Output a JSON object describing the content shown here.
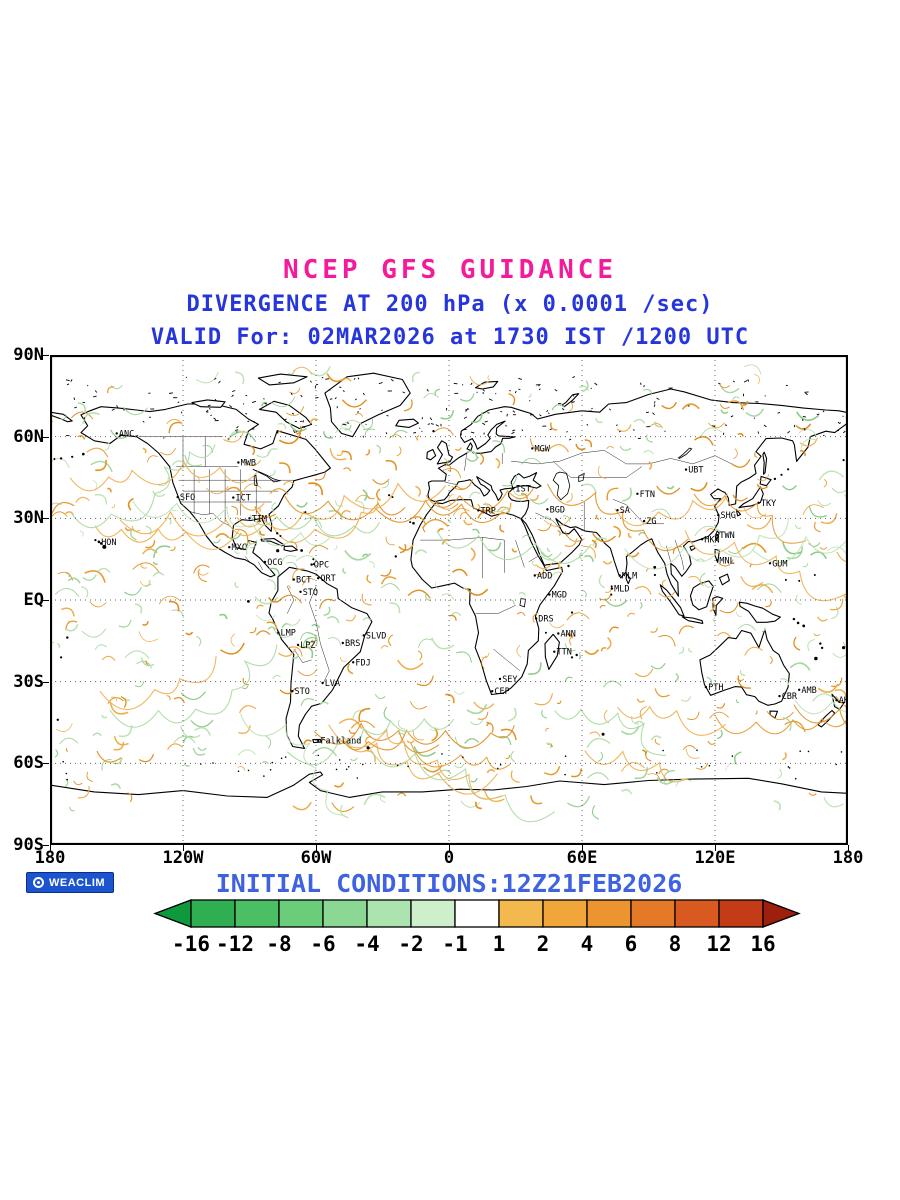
{
  "header": {
    "title": "NCEP GFS GUIDANCE",
    "subtitle1": "DIVERGENCE AT 200 hPa (x 0.0001 /sec)",
    "subtitle2": "VALID For: 02MAR2026 at 1730 IST /1200 UTC"
  },
  "footer": {
    "logo_text": "WEACLIM",
    "initial_conditions": "INITIAL CONDITIONS:12Z21FEB2026"
  },
  "colors": {
    "title_magenta": "#F5199B",
    "heading_blue": "#2636DC",
    "footer_blue": "#3E62E0",
    "logo_bg": "#1C53CF",
    "coastline": "#000000",
    "gridline": "#666666",
    "field_orange": [
      "#E59A2D",
      "#DE8F1F",
      "#EFAE4E"
    ],
    "field_green": [
      "#A8D9A0",
      "#BFE3B4",
      "#8FCC8B"
    ]
  },
  "map_axes": {
    "lat_ticks": [
      "90N",
      "60N",
      "30N",
      "EQ",
      "30S",
      "60S",
      "90S"
    ],
    "lon_ticks": [
      "180",
      "120W",
      "60W",
      "0",
      "60E",
      "120E",
      "180"
    ]
  },
  "stations": [
    {
      "label": "ANC",
      "lon": -149.9,
      "lat": 61.2
    },
    {
      "label": "MWB",
      "lon": -95.0,
      "lat": 50.5
    },
    {
      "label": "SFO",
      "lon": -122.4,
      "lat": 37.8
    },
    {
      "label": "ICT",
      "lon": -97.3,
      "lat": 37.6
    },
    {
      "label": "TIM",
      "lon": -90.0,
      "lat": 30.0
    },
    {
      "label": "MXC",
      "lon": -99.1,
      "lat": 19.4
    },
    {
      "label": "HON",
      "lon": -157.9,
      "lat": 21.3
    },
    {
      "label": "OCG",
      "lon": -83.0,
      "lat": 14.0
    },
    {
      "label": "OPC",
      "lon": -62.0,
      "lat": 13.0
    },
    {
      "label": "ORT",
      "lon": -59.0,
      "lat": 8.0
    },
    {
      "label": "BCT",
      "lon": -70.0,
      "lat": 7.5
    },
    {
      "label": "STO",
      "lon": -67.0,
      "lat": 3.0
    },
    {
      "label": "LMP",
      "lon": -77.0,
      "lat": -12.0
    },
    {
      "label": "LPZ",
      "lon": -68.1,
      "lat": -16.5
    },
    {
      "label": "BRS",
      "lon": -47.9,
      "lat": -15.8
    },
    {
      "label": "SLVD",
      "lon": -38.5,
      "lat": -13.0
    },
    {
      "label": "FDJ",
      "lon": -43.2,
      "lat": -22.9
    },
    {
      "label": "STO",
      "lon": -70.7,
      "lat": -33.5
    },
    {
      "label": "LVA",
      "lon": -57.0,
      "lat": -30.5
    },
    {
      "label": "Falkland",
      "lon": -59.0,
      "lat": -51.7
    },
    {
      "label": "IST",
      "lon": 29.0,
      "lat": 41.0
    },
    {
      "label": "TRP",
      "lon": 13.2,
      "lat": 32.9
    },
    {
      "label": "BGD",
      "lon": 44.4,
      "lat": 33.3
    },
    {
      "label": "MGW",
      "lon": 37.6,
      "lat": 55.7
    },
    {
      "label": "ADD",
      "lon": 38.7,
      "lat": 9.0
    },
    {
      "label": "MGD",
      "lon": 45.3,
      "lat": 2.0
    },
    {
      "label": "DRS",
      "lon": 39.3,
      "lat": -6.8
    },
    {
      "label": "ANN",
      "lon": 49.3,
      "lat": -12.3
    },
    {
      "label": "TTN",
      "lon": 47.5,
      "lat": -19.0
    },
    {
      "label": "SEY",
      "lon": 23.0,
      "lat": -29.0
    },
    {
      "label": "CEP",
      "lon": 19.5,
      "lat": -33.5
    },
    {
      "label": "SA",
      "lon": 76.0,
      "lat": 33.0
    },
    {
      "label": "FTN",
      "lon": 85.0,
      "lat": 39.0
    },
    {
      "label": "ZG",
      "lon": 88.0,
      "lat": 29.0
    },
    {
      "label": "MLM",
      "lon": 77.0,
      "lat": 9.0
    },
    {
      "label": "MLD",
      "lon": 73.5,
      "lat": 4.2
    },
    {
      "label": "UBT",
      "lon": 106.9,
      "lat": 47.9
    },
    {
      "label": "TKY",
      "lon": 139.7,
      "lat": 35.7
    },
    {
      "label": "SHG",
      "lon": 121.5,
      "lat": 31.2
    },
    {
      "label": "HKN",
      "lon": 114.2,
      "lat": 22.3
    },
    {
      "label": "TWN",
      "lon": 121.0,
      "lat": 23.8
    },
    {
      "label": "MNL",
      "lon": 121.0,
      "lat": 14.6
    },
    {
      "label": "GUM",
      "lon": 144.8,
      "lat": 13.5
    },
    {
      "label": "PTH",
      "lon": 115.9,
      "lat": -32.0
    },
    {
      "label": "CBR",
      "lon": 149.1,
      "lat": -35.3
    },
    {
      "label": "AMB",
      "lon": 158.0,
      "lat": -33.0
    },
    {
      "label": "AKL",
      "lon": 174.8,
      "lat": -36.8
    }
  ],
  "chart_data": {
    "type": "heatmap",
    "title": "NCEP GFS GUIDANCE",
    "variable": "Divergence at 200 hPa",
    "units": "x 0.0001 /sec",
    "valid_time": "02MAR2026 at 1730 IST /1200 UTC",
    "initial_conditions": "12Z21FEB2026",
    "projection": "equirectangular global map",
    "lon_range": [
      -180,
      180
    ],
    "lat_range": [
      -90,
      90
    ],
    "grid": "dashed lines every 30 deg latitude / 60 deg longitude",
    "legend_position": "bottom",
    "colorbar": {
      "levels": [
        -16,
        -12,
        -8,
        -6,
        -4,
        -2,
        -1,
        1,
        2,
        4,
        6,
        8,
        12,
        16
      ],
      "labels": [
        "-16",
        "-12",
        "-8",
        "-6",
        "-4",
        "-2",
        "-1",
        "1",
        "2",
        "4",
        "6",
        "8",
        "12",
        "16"
      ],
      "colors": [
        "#0E9A3C",
        "#2FAF52",
        "#4CBE63",
        "#6BCC79",
        "#8AD893",
        "#ACE4AF",
        "#CDEFCB",
        "#FFFFFF",
        "#F3B94E",
        "#F0A63B",
        "#EC9530",
        "#E47A28",
        "#D95A20",
        "#C43B18",
        "#9E1F0E"
      ]
    }
  }
}
